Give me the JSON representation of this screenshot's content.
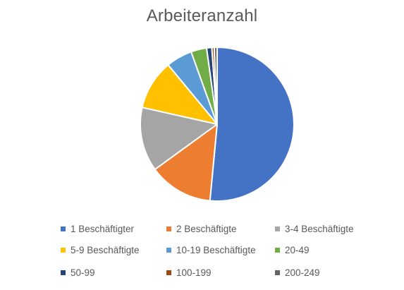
{
  "chart_data": {
    "type": "pie",
    "title": "Arbeiteranzahl",
    "categories": [
      "1 Beschäftigter",
      "2 Beschäftigte",
      "3-4 Beschäftigte",
      "5-9 Beschäftigte",
      "10-19 Beschäftigte",
      "20-49",
      "50-99",
      "100-199",
      "200-249"
    ],
    "values": [
      51.5,
      13.5,
      13.5,
      10.5,
      5.5,
      3.3,
      1.1,
      0.5,
      0.6
    ],
    "colors": [
      "#4472C4",
      "#ED7D31",
      "#A5A5A5",
      "#FFC000",
      "#5B9BD5",
      "#70AD47",
      "#264478",
      "#9E480E",
      "#636363"
    ],
    "legend_position": "bottom"
  }
}
